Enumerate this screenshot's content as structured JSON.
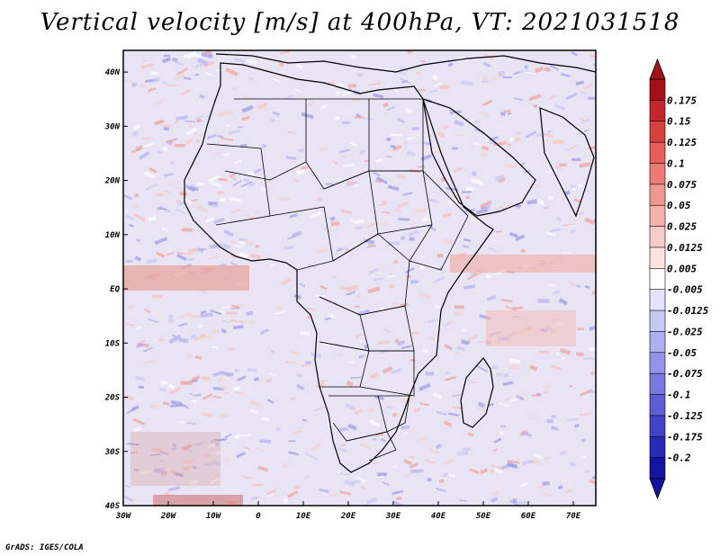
{
  "title": "Vertical velocity [m/s] at 400hPa, VT: 2021031518",
  "footer": "GrADS: IGES/COLA",
  "map": {
    "lon_labels": [
      "30W",
      "20W",
      "10W",
      "0",
      "10E",
      "20E",
      "30E",
      "40E",
      "50E",
      "60E",
      "70E"
    ],
    "lat_labels": [
      "40N",
      "30N",
      "20N",
      "10N",
      "EQ",
      "10S",
      "20S",
      "30S",
      "40S"
    ],
    "lon_range": [
      -30,
      75
    ],
    "lat_range": [
      -40,
      44
    ]
  },
  "colorbar": {
    "labels": [
      "0.175",
      "0.15",
      "0.125",
      "0.1",
      "0.075",
      "0.05",
      "0.025",
      "0.0125",
      "0.005",
      "-0.005",
      "-0.0125",
      "-0.025",
      "-0.05",
      "-0.075",
      "-0.1",
      "-0.125",
      "-0.175",
      "-0.2"
    ],
    "colors": [
      "#a50f15",
      "#c1272d",
      "#d7423e",
      "#e35f58",
      "#ec7b73",
      "#f2978f",
      "#f6b1aa",
      "#f9cbc6",
      "#fbe3e0",
      "#ffffff",
      "#e3e3fb",
      "#c8c8f6",
      "#aeaef0",
      "#9393e8",
      "#7878df",
      "#5d5dd6",
      "#4242c9",
      "#2a2ab8",
      "#1414a0"
    ]
  }
}
